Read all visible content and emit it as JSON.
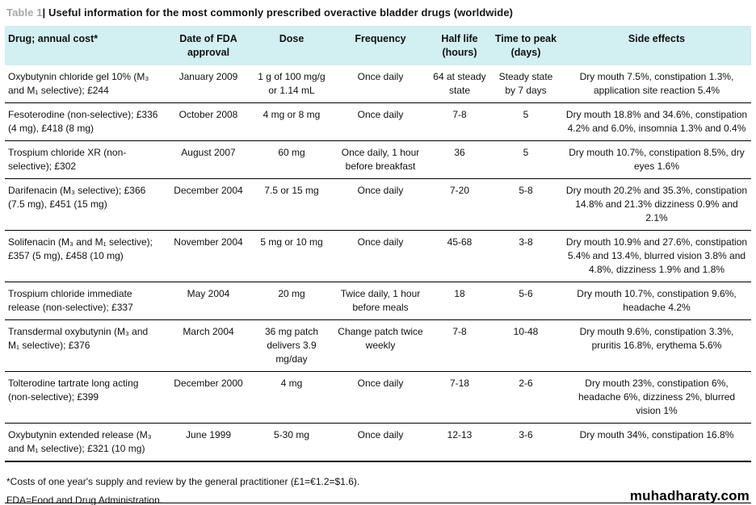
{
  "title": {
    "label": "Table 1",
    "text": "| Useful information for the most commonly prescribed overactive bladder drugs (worldwide)"
  },
  "colors": {
    "header_bg": "#d2eff2",
    "title_label_gray": "#a9a9a9",
    "rule_black": "#000000"
  },
  "table": {
    "columns": [
      {
        "key": "drug",
        "label": "Drug; annual cost*"
      },
      {
        "key": "fda",
        "label": "Date of FDA approval"
      },
      {
        "key": "dose",
        "label": "Dose"
      },
      {
        "key": "frequency",
        "label": "Frequency"
      },
      {
        "key": "half_life",
        "label": "Half life (hours)"
      },
      {
        "key": "time_to_peak",
        "label": "Time to peak (days)"
      },
      {
        "key": "side_effects",
        "label": "Side effects"
      }
    ],
    "rows": [
      {
        "drug": "Oxybutynin chloride gel 10% (M₃ and M₁ selective); £244",
        "fda": "January 2009",
        "dose": "1 g of 100 mg/g or 1.14 mL",
        "frequency": "Once daily",
        "half_life": "64 at steady state",
        "time_to_peak": "Steady state by 7 days",
        "side_effects": "Dry mouth 7.5%, constipation 1.3%, application site reaction 5.4%"
      },
      {
        "drug": "Fesoterodine (non-selective); £336 (4 mg), £418 (8 mg)",
        "fda": "October 2008",
        "dose": "4 mg or 8 mg",
        "frequency": "Once daily",
        "half_life": "7-8",
        "time_to_peak": "5",
        "side_effects": "Dry mouth 18.8% and 34.6%, constipation 4.2% and 6.0%, insomnia 1.3% and 0.4%"
      },
      {
        "drug": "Trospium chloride XR (non-selective); £302",
        "fda": "August 2007",
        "dose": "60 mg",
        "frequency": "Once daily, 1 hour before breakfast",
        "half_life": "36",
        "time_to_peak": "5",
        "side_effects": "Dry mouth 10.7%, constipation 8.5%, dry eyes 1.6%"
      },
      {
        "drug": "Darifenacin (M₃ selective); £366 (7.5 mg), £451 (15 mg)",
        "fda": "December 2004",
        "dose": "7.5 or 15 mg",
        "frequency": "Once daily",
        "half_life": "7-20",
        "time_to_peak": "5-8",
        "side_effects": "Dry mouth 20.2% and 35.3%, constipation 14.8% and 21.3% dizziness 0.9% and 2.1%"
      },
      {
        "drug": "Solifenacin (M₃ and M₁ selective); £357 (5 mg), £458 (10 mg)",
        "fda": "November 2004",
        "dose": "5 mg or 10 mg",
        "frequency": "Once daily",
        "half_life": "45-68",
        "time_to_peak": "3-8",
        "side_effects": "Dry mouth 10.9% and 27.6%, constipation 5.4% and 13.4%, blurred vision 3.8% and 4.8%, dizziness 1.9% and 1.8%"
      },
      {
        "drug": "Trospium chloride immediate release (non-selective); £337",
        "fda": "May 2004",
        "dose": "20 mg",
        "frequency": "Twice daily, 1 hour before meals",
        "half_life": "18",
        "time_to_peak": "5-6",
        "side_effects": "Dry mouth 10.7%, constipation 9.6%, headache 4.2%"
      },
      {
        "drug": "Transdermal oxybutynin (M₃ and M₁ selective); £376",
        "fda": "March 2004",
        "dose": "36 mg patch delivers 3.9 mg/day",
        "frequency": "Change patch twice weekly",
        "half_life": "7-8",
        "time_to_peak": "10-48",
        "side_effects": "Dry mouth 9.6%, constipation 3.3%, pruritis 16.8%, erythema 5.6%"
      },
      {
        "drug": "Tolterodine tartrate long acting (non-selective); £399",
        "fda": "December 2000",
        "dose": "4 mg",
        "frequency": "Once daily",
        "half_life": "7-18",
        "time_to_peak": "2-6",
        "side_effects": "Dry mouth 23%, constipation 6%, headache 6%, dizziness 2%, blurred vision 1%"
      },
      {
        "drug": "Oxybutynin extended release (M₃ and M₁ selective); £321 (10 mg)",
        "fda": "June 1999",
        "dose": "5-30 mg",
        "frequency": "Once daily",
        "half_life": "12-13",
        "time_to_peak": "3-6",
        "side_effects": "Dry mouth 34%, constipation 16.8%"
      }
    ]
  },
  "footnotes": [
    "*Costs of one year's supply and review by the general practitioner (£1=€1.2=$1.6).",
    "FDA=Food and Drug Administration."
  ],
  "watermark": "muhadharaty.com"
}
